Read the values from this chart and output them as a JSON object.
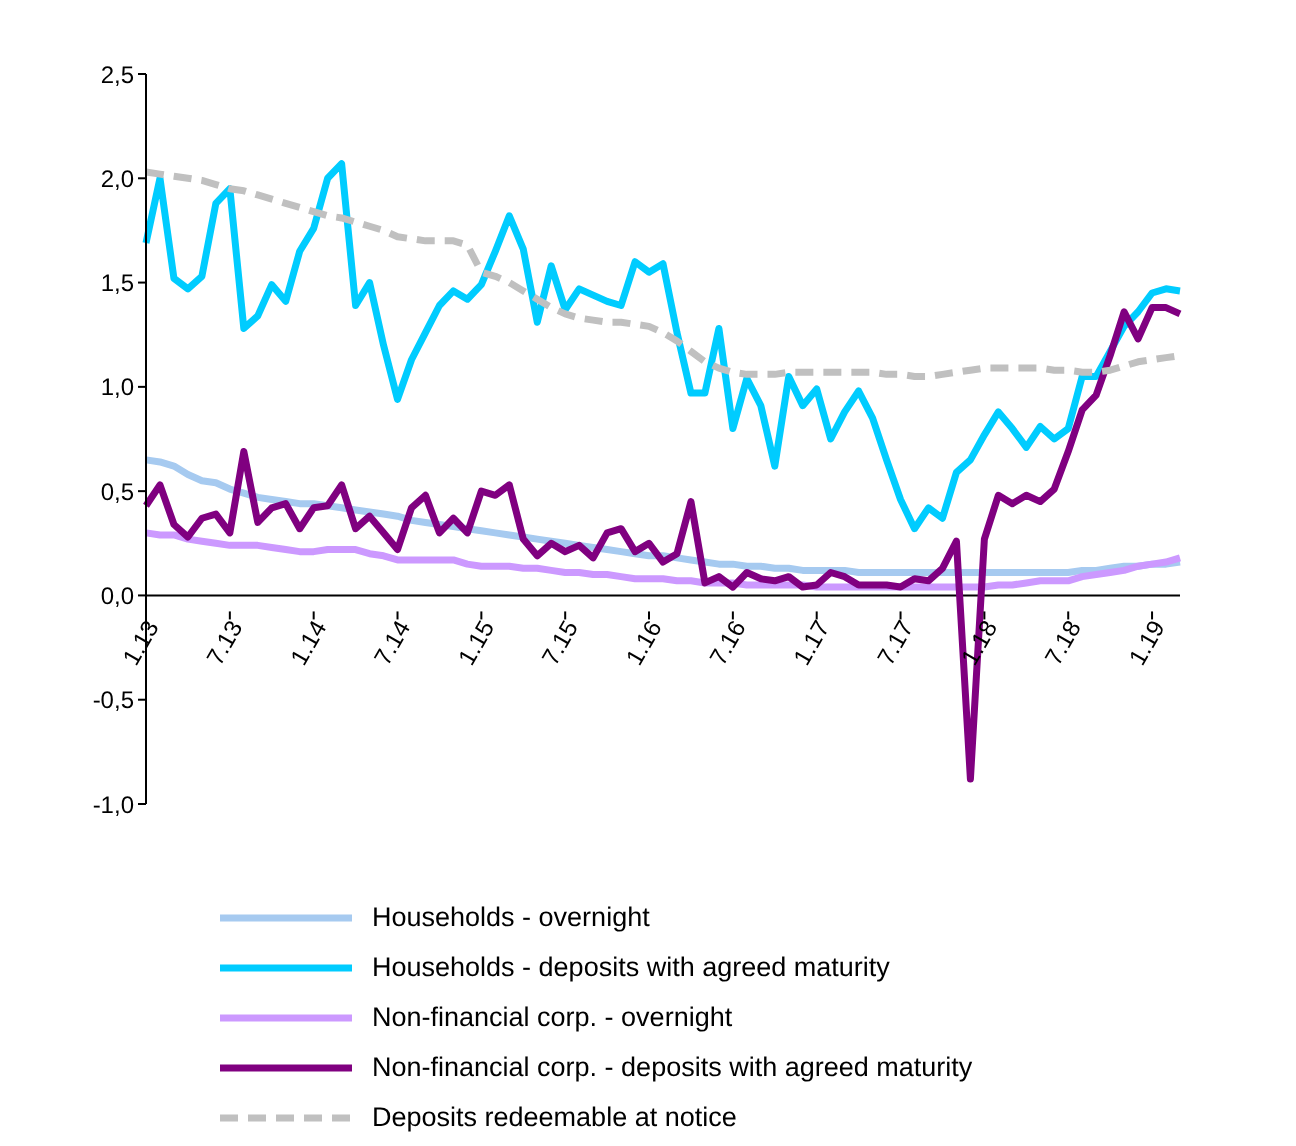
{
  "chart_data": {
    "type": "line",
    "categories": [
      "1.13",
      null,
      null,
      null,
      null,
      null,
      "7.13",
      null,
      null,
      null,
      null,
      null,
      "1.14",
      null,
      null,
      null,
      null,
      null,
      "7.14",
      null,
      null,
      null,
      null,
      null,
      "1.15",
      null,
      null,
      null,
      null,
      null,
      "7.15",
      null,
      null,
      null,
      null,
      null,
      "1.16",
      null,
      null,
      null,
      null,
      null,
      "7.16",
      null,
      null,
      null,
      null,
      null,
      "1.17",
      null,
      null,
      null,
      null,
      null,
      "7.17",
      null,
      null,
      null,
      null,
      null,
      "1.18",
      null,
      null,
      null,
      null,
      null,
      "7.18",
      null,
      null,
      null,
      null,
      null,
      "1.19",
      null,
      null
    ],
    "ylim": [
      -1,
      2.5
    ],
    "yticks": [
      {
        "value": -1,
        "label": "-1,0"
      },
      {
        "value": -0.5,
        "label": "-0,5"
      },
      {
        "value": 0,
        "label": "0,0"
      },
      {
        "value": 0.5,
        "label": "0,5"
      },
      {
        "value": 1,
        "label": "1,0"
      },
      {
        "value": 1.5,
        "label": "1,5"
      },
      {
        "value": 2,
        "label": "2,0"
      },
      {
        "value": 2.5,
        "label": "2,5"
      }
    ],
    "grid": false,
    "legend": "bottom",
    "marker": "none",
    "series": [
      {
        "name": "Households - overnight",
        "color": "#a6caf0",
        "line_style": "solid",
        "values": [
          0.65,
          0.64,
          0.62,
          0.58,
          0.55,
          0.54,
          0.51,
          0.49,
          0.47,
          0.46,
          0.45,
          0.44,
          0.44,
          0.43,
          0.42,
          0.41,
          0.4,
          0.39,
          0.38,
          0.36,
          0.35,
          0.34,
          0.33,
          0.32,
          0.31,
          0.3,
          0.29,
          0.28,
          0.27,
          0.26,
          0.25,
          0.24,
          0.23,
          0.22,
          0.21,
          0.2,
          0.19,
          0.19,
          0.18,
          0.17,
          0.16,
          0.15,
          0.15,
          0.14,
          0.14,
          0.13,
          0.13,
          0.12,
          0.12,
          0.12,
          0.12,
          0.11,
          0.11,
          0.11,
          0.11,
          0.11,
          0.11,
          0.11,
          0.11,
          0.11,
          0.11,
          0.11,
          0.11,
          0.11,
          0.11,
          0.11,
          0.11,
          0.12,
          0.12,
          0.13,
          0.14,
          0.14,
          0.15,
          0.15,
          0.16
        ]
      },
      {
        "name": "Households - deposits with agreed maturity",
        "color": "#00ccff",
        "line_style": "solid",
        "values": [
          1.69,
          2.0,
          1.52,
          1.47,
          1.53,
          1.88,
          1.95,
          1.28,
          1.34,
          1.49,
          1.41,
          1.65,
          1.76,
          2.0,
          2.07,
          1.39,
          1.5,
          1.2,
          0.94,
          1.13,
          1.26,
          1.39,
          1.46,
          1.42,
          1.49,
          1.65,
          1.82,
          1.66,
          1.31,
          1.58,
          1.37,
          1.47,
          1.44,
          1.41,
          1.39,
          1.6,
          1.55,
          1.59,
          1.26,
          0.97,
          0.97,
          1.28,
          0.8,
          1.04,
          0.91,
          0.62,
          1.05,
          0.91,
          0.99,
          0.75,
          0.88,
          0.98,
          0.85,
          0.65,
          0.46,
          0.32,
          0.42,
          0.37,
          0.59,
          0.65,
          0.77,
          0.88,
          0.8,
          0.71,
          0.81,
          0.75,
          0.8,
          1.05,
          1.05,
          1.17,
          1.29,
          1.36,
          1.45,
          1.47,
          1.46
        ]
      },
      {
        "name": "Non-financial corp. - overnight",
        "color": "#cc99ff",
        "line_style": "solid",
        "values": [
          0.3,
          0.29,
          0.29,
          0.27,
          0.26,
          0.25,
          0.24,
          0.24,
          0.24,
          0.23,
          0.22,
          0.21,
          0.21,
          0.22,
          0.22,
          0.22,
          0.2,
          0.19,
          0.17,
          0.17,
          0.17,
          0.17,
          0.17,
          0.15,
          0.14,
          0.14,
          0.14,
          0.13,
          0.13,
          0.12,
          0.11,
          0.11,
          0.1,
          0.1,
          0.09,
          0.08,
          0.08,
          0.08,
          0.07,
          0.07,
          0.06,
          0.06,
          0.06,
          0.05,
          0.05,
          0.05,
          0.05,
          0.05,
          0.04,
          0.04,
          0.04,
          0.04,
          0.04,
          0.04,
          0.04,
          0.04,
          0.04,
          0.04,
          0.04,
          0.04,
          0.04,
          0.05,
          0.05,
          0.06,
          0.07,
          0.07,
          0.07,
          0.09,
          0.1,
          0.11,
          0.12,
          0.14,
          0.15,
          0.16,
          0.18
        ]
      },
      {
        "name": "Non-financial corp. - deposits with agreed maturity",
        "color": "#800080",
        "line_style": "solid",
        "values": [
          0.43,
          0.53,
          0.34,
          0.28,
          0.37,
          0.39,
          0.3,
          0.69,
          0.35,
          0.42,
          0.44,
          0.32,
          0.42,
          0.43,
          0.53,
          0.32,
          0.38,
          0.3,
          0.22,
          0.42,
          0.48,
          0.3,
          0.37,
          0.3,
          0.5,
          0.48,
          0.53,
          0.27,
          0.19,
          0.25,
          0.21,
          0.24,
          0.18,
          0.3,
          0.32,
          0.21,
          0.25,
          0.16,
          0.2,
          0.45,
          0.06,
          0.09,
          0.04,
          0.11,
          0.08,
          0.07,
          0.09,
          0.04,
          0.05,
          0.11,
          0.09,
          0.05,
          0.05,
          0.05,
          0.04,
          0.08,
          0.07,
          0.13,
          0.26,
          -0.88,
          0.27,
          0.48,
          0.44,
          0.48,
          0.45,
          0.51,
          0.69,
          0.89,
          0.96,
          1.15,
          1.36,
          1.23,
          1.38,
          1.38,
          1.35
        ]
      },
      {
        "name": "Deposits redeemable at notice",
        "color": "#c0c0c0",
        "line_style": "dashed",
        "values": [
          2.03,
          2.02,
          2.01,
          2.0,
          1.99,
          1.97,
          1.95,
          1.94,
          1.92,
          1.9,
          1.88,
          1.86,
          1.84,
          1.82,
          1.81,
          1.79,
          1.77,
          1.75,
          1.72,
          1.71,
          1.7,
          1.7,
          1.7,
          1.68,
          1.55,
          1.53,
          1.5,
          1.46,
          1.42,
          1.38,
          1.35,
          1.33,
          1.32,
          1.31,
          1.31,
          1.3,
          1.29,
          1.26,
          1.22,
          1.17,
          1.12,
          1.09,
          1.07,
          1.06,
          1.06,
          1.06,
          1.07,
          1.07,
          1.07,
          1.07,
          1.07,
          1.07,
          1.07,
          1.06,
          1.06,
          1.05,
          1.05,
          1.06,
          1.07,
          1.08,
          1.09,
          1.09,
          1.09,
          1.09,
          1.09,
          1.08,
          1.08,
          1.07,
          1.07,
          1.08,
          1.1,
          1.12,
          1.13,
          1.14,
          1.15
        ]
      }
    ]
  }
}
